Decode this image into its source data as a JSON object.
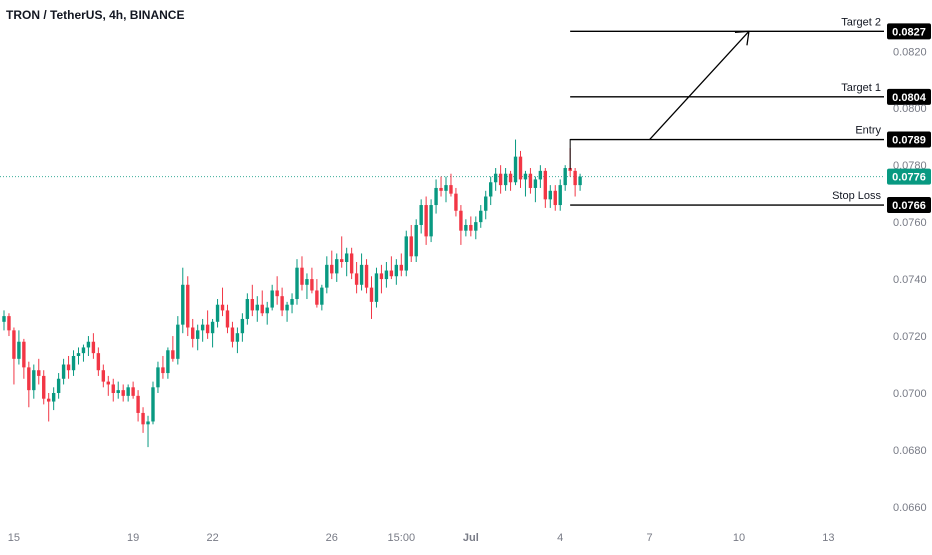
{
  "header": {
    "symbol_title": "TRON / TetherUS, 4h, BINANCE"
  },
  "colors": {
    "up": "#089981",
    "down": "#f23645",
    "wick_up": "#089981",
    "wick_down": "#f23645",
    "grid_text": "#787b86",
    "line": "#000000",
    "current": "#089981"
  },
  "chart_data": {
    "type": "candlestick",
    "title": "TRON / TetherUS, 4h, BINANCE",
    "y_axis": {
      "ticks": [
        "0.0820",
        "0.0800",
        "0.0780",
        "0.0760",
        "0.0740",
        "0.0720",
        "0.0700",
        "0.0680",
        "0.0660"
      ],
      "tick_values": [
        0.082,
        0.08,
        0.078,
        0.076,
        0.074,
        0.072,
        0.07,
        0.068,
        0.066
      ],
      "range": [
        0.0654,
        0.0838
      ]
    },
    "x_axis": {
      "ticks": [
        "15",
        "19",
        "22",
        "26",
        "15:00",
        "Jul",
        "4",
        "7",
        "10",
        "13"
      ],
      "tick_index": [
        2,
        26,
        42,
        66,
        80,
        94,
        112,
        130,
        148,
        166
      ],
      "range_index": [
        0,
        178
      ]
    },
    "current_price": {
      "label": "0.0776",
      "value": 0.0776
    },
    "levels": [
      {
        "name": "Target 2",
        "value": 0.0827,
        "label": "0.0827"
      },
      {
        "name": "Target 1",
        "value": 0.0804,
        "label": "0.0804"
      },
      {
        "name": "Entry",
        "value": 0.0789,
        "label": "0.0789"
      },
      {
        "name": "Stop Loss",
        "value": 0.0766,
        "label": "0.0766"
      }
    ],
    "level_start_index": 114,
    "projection": {
      "from": [
        130,
        0.0789
      ],
      "to": [
        150,
        0.0827
      ]
    },
    "candles": [
      [
        0.0725,
        0.0729,
        0.0722,
        0.0727
      ],
      [
        0.0727,
        0.0728,
        0.072,
        0.0722
      ],
      [
        0.0722,
        0.0723,
        0.0703,
        0.0712
      ],
      [
        0.0712,
        0.0722,
        0.071,
        0.0718
      ],
      [
        0.0718,
        0.0719,
        0.0705,
        0.0709
      ],
      [
        0.0709,
        0.0711,
        0.0695,
        0.0701
      ],
      [
        0.0701,
        0.071,
        0.0698,
        0.0708
      ],
      [
        0.0708,
        0.0712,
        0.0703,
        0.0706
      ],
      [
        0.0706,
        0.0708,
        0.0696,
        0.0698
      ],
      [
        0.0698,
        0.07,
        0.069,
        0.0697
      ],
      [
        0.0697,
        0.0702,
        0.0694,
        0.07
      ],
      [
        0.07,
        0.0707,
        0.0698,
        0.0705
      ],
      [
        0.0705,
        0.0712,
        0.0703,
        0.071
      ],
      [
        0.071,
        0.0713,
        0.0705,
        0.0708
      ],
      [
        0.0708,
        0.0715,
        0.0706,
        0.0713
      ],
      [
        0.0713,
        0.0716,
        0.071,
        0.0714
      ],
      [
        0.0714,
        0.0717,
        0.0711,
        0.0716
      ],
      [
        0.0716,
        0.072,
        0.0713,
        0.0718
      ],
      [
        0.0718,
        0.0721,
        0.0712,
        0.0714
      ],
      [
        0.0714,
        0.0716,
        0.0706,
        0.0708
      ],
      [
        0.0708,
        0.071,
        0.0702,
        0.0704
      ],
      [
        0.0704,
        0.0706,
        0.0699,
        0.0703
      ],
      [
        0.0703,
        0.0705,
        0.0697,
        0.07
      ],
      [
        0.07,
        0.0704,
        0.0698,
        0.0701
      ],
      [
        0.0701,
        0.0703,
        0.0697,
        0.0699
      ],
      [
        0.0699,
        0.0703,
        0.0697,
        0.0702
      ],
      [
        0.0702,
        0.0704,
        0.0698,
        0.0699
      ],
      [
        0.0699,
        0.0701,
        0.069,
        0.0693
      ],
      [
        0.0693,
        0.0695,
        0.0686,
        0.0689
      ],
      [
        0.0689,
        0.0692,
        0.0681,
        0.069
      ],
      [
        0.069,
        0.0704,
        0.0689,
        0.0702
      ],
      [
        0.0702,
        0.0711,
        0.07,
        0.0709
      ],
      [
        0.0709,
        0.0713,
        0.0705,
        0.0707
      ],
      [
        0.0707,
        0.0716,
        0.0705,
        0.0715
      ],
      [
        0.0715,
        0.072,
        0.0711,
        0.0712
      ],
      [
        0.0712,
        0.0727,
        0.071,
        0.0724
      ],
      [
        0.0724,
        0.0744,
        0.0721,
        0.0738
      ],
      [
        0.0738,
        0.0741,
        0.072,
        0.0723
      ],
      [
        0.0723,
        0.0726,
        0.0716,
        0.0719
      ],
      [
        0.0719,
        0.0724,
        0.0715,
        0.0722
      ],
      [
        0.0722,
        0.0726,
        0.0718,
        0.0724
      ],
      [
        0.0724,
        0.0729,
        0.0719,
        0.0721
      ],
      [
        0.0721,
        0.0726,
        0.0716,
        0.0725
      ],
      [
        0.0725,
        0.0733,
        0.0723,
        0.0731
      ],
      [
        0.0731,
        0.0737,
        0.0727,
        0.0729
      ],
      [
        0.0729,
        0.0731,
        0.0721,
        0.0723
      ],
      [
        0.0723,
        0.0725,
        0.0716,
        0.0718
      ],
      [
        0.0718,
        0.0723,
        0.0714,
        0.0721
      ],
      [
        0.0721,
        0.0728,
        0.0718,
        0.0726
      ],
      [
        0.0726,
        0.0735,
        0.0724,
        0.0733
      ],
      [
        0.0733,
        0.0738,
        0.0727,
        0.0729
      ],
      [
        0.0729,
        0.0734,
        0.0725,
        0.0731
      ],
      [
        0.0731,
        0.0736,
        0.0727,
        0.0728
      ],
      [
        0.0728,
        0.0732,
        0.0724,
        0.073
      ],
      [
        0.073,
        0.0738,
        0.0729,
        0.0736
      ],
      [
        0.0736,
        0.0741,
        0.0731,
        0.0734
      ],
      [
        0.0734,
        0.0737,
        0.0727,
        0.0729
      ],
      [
        0.0729,
        0.0732,
        0.0725,
        0.0731
      ],
      [
        0.0731,
        0.0735,
        0.0728,
        0.0733
      ],
      [
        0.0733,
        0.0747,
        0.0731,
        0.0744
      ],
      [
        0.0744,
        0.0748,
        0.0736,
        0.0738
      ],
      [
        0.0738,
        0.0742,
        0.0733,
        0.074
      ],
      [
        0.074,
        0.0744,
        0.0735,
        0.0736
      ],
      [
        0.0736,
        0.074,
        0.073,
        0.0731
      ],
      [
        0.0731,
        0.0738,
        0.0729,
        0.0737
      ],
      [
        0.0737,
        0.0748,
        0.0735,
        0.0745
      ],
      [
        0.0745,
        0.075,
        0.074,
        0.0742
      ],
      [
        0.0742,
        0.0749,
        0.0739,
        0.0747
      ],
      [
        0.0747,
        0.0755,
        0.0744,
        0.0746
      ],
      [
        0.0746,
        0.0751,
        0.0741,
        0.0749
      ],
      [
        0.0749,
        0.0751,
        0.074,
        0.0742
      ],
      [
        0.0742,
        0.0746,
        0.0735,
        0.0738
      ],
      [
        0.0738,
        0.0749,
        0.0736,
        0.0745
      ],
      [
        0.0745,
        0.0747,
        0.0735,
        0.0737
      ],
      [
        0.0737,
        0.0741,
        0.0726,
        0.0732
      ],
      [
        0.0732,
        0.0744,
        0.073,
        0.0742
      ],
      [
        0.0742,
        0.0745,
        0.0735,
        0.074
      ],
      [
        0.074,
        0.0746,
        0.0737,
        0.0743
      ],
      [
        0.0743,
        0.0748,
        0.074,
        0.0741
      ],
      [
        0.0741,
        0.0747,
        0.0738,
        0.0745
      ],
      [
        0.0745,
        0.0749,
        0.0741,
        0.0743
      ],
      [
        0.0743,
        0.0757,
        0.0741,
        0.0755
      ],
      [
        0.0755,
        0.0759,
        0.0746,
        0.0748
      ],
      [
        0.0748,
        0.0761,
        0.0746,
        0.0759
      ],
      [
        0.0759,
        0.0768,
        0.0756,
        0.0766
      ],
      [
        0.0766,
        0.0769,
        0.0752,
        0.0755
      ],
      [
        0.0755,
        0.0768,
        0.0753,
        0.0766
      ],
      [
        0.0766,
        0.0775,
        0.0763,
        0.0772
      ],
      [
        0.0772,
        0.0776,
        0.0769,
        0.0771
      ],
      [
        0.0771,
        0.0776,
        0.0767,
        0.0773
      ],
      [
        0.0773,
        0.0777,
        0.0769,
        0.077
      ],
      [
        0.077,
        0.0772,
        0.0762,
        0.0764
      ],
      [
        0.0764,
        0.0766,
        0.0752,
        0.0757
      ],
      [
        0.0757,
        0.0761,
        0.0755,
        0.0759
      ],
      [
        0.0759,
        0.0762,
        0.0755,
        0.0757
      ],
      [
        0.0757,
        0.0762,
        0.0754,
        0.076
      ],
      [
        0.076,
        0.0766,
        0.0758,
        0.0764
      ],
      [
        0.0764,
        0.0771,
        0.0761,
        0.0769
      ],
      [
        0.0769,
        0.0776,
        0.0766,
        0.0774
      ],
      [
        0.0774,
        0.0779,
        0.0771,
        0.0777
      ],
      [
        0.0777,
        0.078,
        0.077,
        0.0773
      ],
      [
        0.0773,
        0.0779,
        0.0771,
        0.0777
      ],
      [
        0.0777,
        0.0778,
        0.0771,
        0.0774
      ],
      [
        0.0774,
        0.0789,
        0.0773,
        0.0783
      ],
      [
        0.0783,
        0.0785,
        0.0772,
        0.0775
      ],
      [
        0.0775,
        0.0778,
        0.0769,
        0.0777
      ],
      [
        0.0777,
        0.0779,
        0.077,
        0.0772
      ],
      [
        0.0772,
        0.0776,
        0.0767,
        0.0775
      ],
      [
        0.0775,
        0.078,
        0.0772,
        0.0778
      ],
      [
        0.0778,
        0.0779,
        0.0765,
        0.0768
      ],
      [
        0.0768,
        0.0773,
        0.0765,
        0.0771
      ],
      [
        0.0771,
        0.0773,
        0.0764,
        0.0766
      ],
      [
        0.0766,
        0.0775,
        0.0764,
        0.0773
      ],
      [
        0.0773,
        0.078,
        0.0771,
        0.0779
      ],
      [
        0.0779,
        0.0786,
        0.0776,
        0.0778
      ],
      [
        0.0778,
        0.0779,
        0.0769,
        0.0773
      ],
      [
        0.0773,
        0.0777,
        0.0771,
        0.0776
      ]
    ]
  }
}
